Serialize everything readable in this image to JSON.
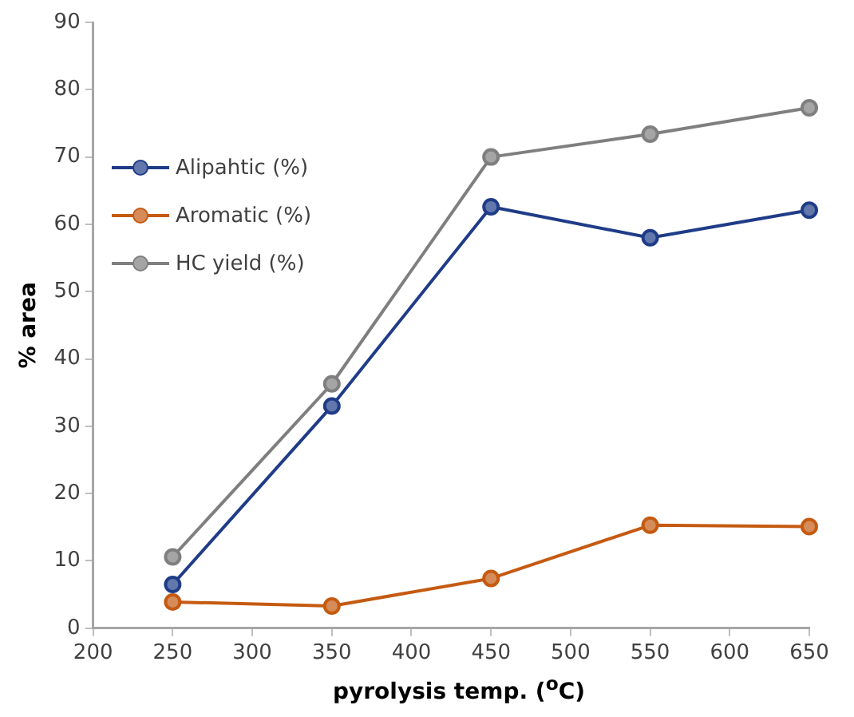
{
  "chart_data": {
    "type": "line",
    "xlabel": "pyrolysis temp. ($^{o}$C)",
    "ylabel": "% area",
    "x": [
      250,
      350,
      450,
      550,
      650
    ],
    "series": [
      {
        "name": "Alipahtic (%)",
        "color": "#1f3c88",
        "values": [
          6.5,
          33,
          62.6,
          58,
          62.1
        ]
      },
      {
        "name": "Aromatic (%)",
        "color": "#c55a11",
        "values": [
          3.9,
          3.3,
          7.4,
          15.3,
          15.1
        ]
      },
      {
        "name": "HC yield (%)",
        "color": "#7f7f7f",
        "values": [
          10.6,
          36.3,
          70,
          73.4,
          77.3
        ]
      }
    ],
    "xlim": [
      200,
      650
    ],
    "xticks": [
      200,
      250,
      300,
      350,
      400,
      450,
      500,
      550,
      600,
      650
    ],
    "ylim": [
      0,
      90
    ],
    "yticks": [
      0,
      10,
      20,
      30,
      40,
      50,
      60,
      70,
      80,
      90
    ],
    "grid": false,
    "legend": "top left",
    "marker": "circle",
    "line_style": "solid"
  }
}
